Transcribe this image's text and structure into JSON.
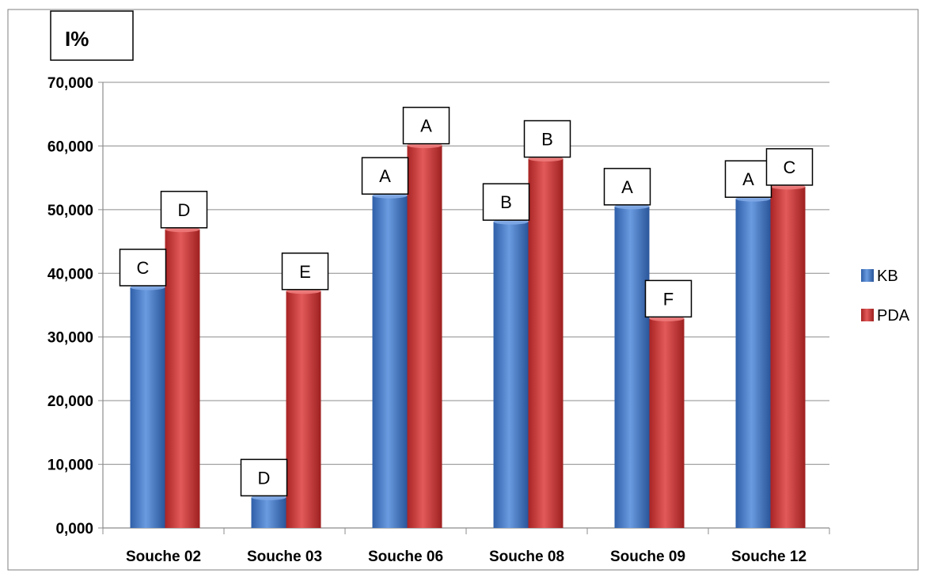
{
  "chart_data": {
    "type": "bar",
    "y_unit_label": "I%",
    "categories": [
      "Souche 02",
      "Souche 03",
      "Souche 06",
      "Souche 08",
      "Souche 09",
      "Souche 12"
    ],
    "series": [
      {
        "name": "KB",
        "color": "#4A7EC8",
        "values": [
          37.8,
          4.8,
          52.2,
          48.1,
          50.5,
          51.7
        ],
        "letters": [
          "C",
          "D",
          "A",
          "B",
          "A",
          "A"
        ]
      },
      {
        "name": "PDA",
        "color": "#D13B3B",
        "values": [
          46.9,
          37.2,
          60.1,
          58.0,
          32.9,
          53.6
        ],
        "letters": [
          "D",
          "E",
          "A",
          "B",
          "F",
          "C"
        ]
      }
    ],
    "ylim": [
      0,
      70
    ],
    "ytick_step": 10,
    "ytick_labels": [
      "0,000",
      "10,000",
      "20,000",
      "30,000",
      "40,000",
      "50,000",
      "60,000",
      "70,000"
    ],
    "grid": true,
    "legend_position": "right"
  }
}
